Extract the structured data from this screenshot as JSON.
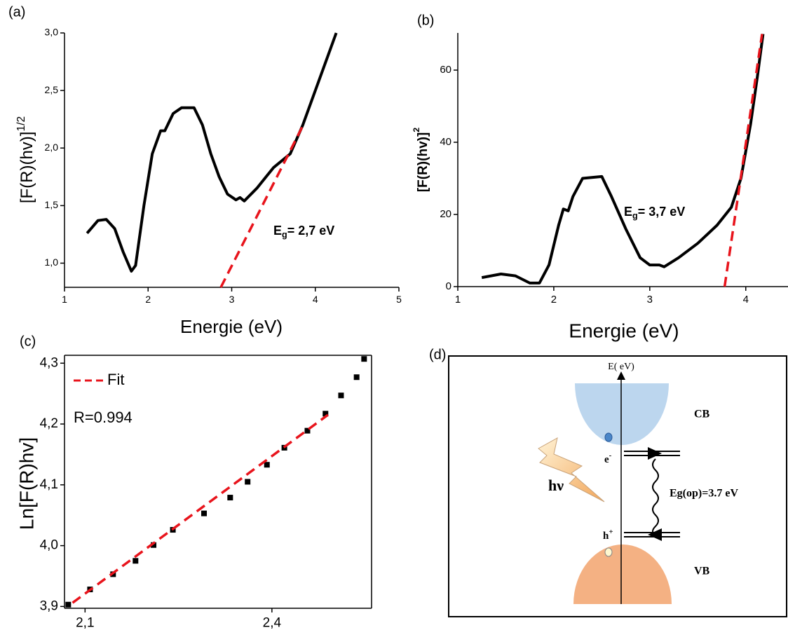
{
  "chart_data": [
    {
      "type": "line",
      "panel_label": "(a)",
      "xlabel": "Energie (eV)",
      "ylabel": {
        "text": "[F(R)(hv)]",
        "sup": "1/2"
      },
      "annotation": {
        "text": "E",
        "sub": "g",
        "rest": "= 2,7 eV"
      },
      "xlim": [
        1,
        5
      ],
      "xticks": [
        1,
        2,
        3,
        4,
        5
      ],
      "ylim": [
        0.79,
        3.0
      ],
      "yticks": [
        {
          "value": 1.0,
          "label": "1,0"
        },
        {
          "value": 1.5,
          "label": "1,5"
        },
        {
          "value": 2.0,
          "label": "2,0"
        },
        {
          "value": 2.5,
          "label": "2,5"
        },
        {
          "value": 3.0,
          "label": "3,0"
        }
      ],
      "series": [
        {
          "color": "#000000",
          "mark": "line",
          "x": [
            1.27,
            1.4,
            1.5,
            1.6,
            1.7,
            1.8,
            1.85,
            1.95,
            2.05,
            2.15,
            2.2,
            2.3,
            2.4,
            2.55,
            2.65,
            2.75,
            2.85,
            2.95,
            3.05,
            3.1,
            3.15,
            3.3,
            3.5,
            3.7,
            3.85,
            4.0,
            4.1,
            4.25
          ],
          "values": [
            1.26,
            1.37,
            1.38,
            1.3,
            1.1,
            0.93,
            0.98,
            1.5,
            1.95,
            2.15,
            2.15,
            2.3,
            2.35,
            2.35,
            2.2,
            1.95,
            1.75,
            1.6,
            1.55,
            1.57,
            1.54,
            1.65,
            1.83,
            1.95,
            2.2,
            2.5,
            2.7,
            3.0
          ]
        },
        {
          "color": "#e8141c",
          "mark": "line",
          "dash": true,
          "x": [
            2.87,
            3.87
          ],
          "values": [
            0.79,
            2.22
          ]
        }
      ]
    },
    {
      "type": "line",
      "panel_label": "(b)",
      "xlabel": "Energie (eV)",
      "ylabel": {
        "text": "[F(R)(hv)]",
        "sup": "2"
      },
      "annotation": {
        "text": "E",
        "sub": "g",
        "rest": "= 3,7 eV"
      },
      "xlim": [
        1,
        4.44
      ],
      "xticks": [
        1,
        2,
        3,
        4
      ],
      "ylim": [
        0,
        70.3
      ],
      "yticks": [
        0,
        20,
        40,
        60
      ],
      "series": [
        {
          "color": "#000000",
          "mark": "line",
          "x": [
            1.25,
            1.45,
            1.6,
            1.75,
            1.85,
            1.95,
            2.05,
            2.1,
            2.15,
            2.2,
            2.3,
            2.5,
            2.6,
            2.75,
            2.9,
            3.0,
            3.1,
            3.15,
            3.3,
            3.5,
            3.7,
            3.85,
            3.95,
            4.05,
            4.12,
            4.18
          ],
          "values": [
            2.5,
            3.5,
            3,
            1,
            1,
            6,
            17,
            21.5,
            21,
            25,
            30,
            30.5,
            25,
            16,
            8,
            6,
            6,
            5.5,
            8,
            12,
            17,
            22,
            30,
            45,
            58,
            70
          ]
        },
        {
          "color": "#e8141c",
          "mark": "line",
          "dash": true,
          "x": [
            3.78,
            4.17
          ],
          "values": [
            0,
            70
          ]
        }
      ]
    },
    {
      "type": "scatter",
      "panel_label": "(c)",
      "ylabel": "Ln[F(R)hv]",
      "annotation_text": "R=0.994",
      "legend": "upper left",
      "xlim": [
        2.067,
        2.56
      ],
      "xticks": [
        {
          "value": 2.1,
          "label": "2,1"
        },
        {
          "value": 2.4,
          "label": "2,4"
        }
      ],
      "ylim": [
        3.897,
        4.313
      ],
      "yticks": [
        {
          "value": 3.9,
          "label": "3,9"
        },
        {
          "value": 4.0,
          "label": "4,0"
        },
        {
          "value": 4.1,
          "label": "4,1"
        },
        {
          "value": 4.2,
          "label": "4,2"
        },
        {
          "value": 4.3,
          "label": "4,3"
        }
      ],
      "series": [
        {
          "color": "#000000",
          "mark": "point",
          "x": [
            2.073,
            2.108,
            2.145,
            2.181,
            2.21,
            2.241,
            2.291,
            2.333,
            2.361,
            2.392,
            2.42,
            2.457,
            2.486,
            2.511,
            2.536,
            2.548
          ],
          "values": [
            3.903,
            3.928,
            3.953,
            3.975,
            4.001,
            4.026,
            4.053,
            4.079,
            4.105,
            4.133,
            4.161,
            4.189,
            4.217,
            4.247,
            4.277,
            4.307
          ]
        },
        {
          "name": "Fit",
          "color": "#e8141c",
          "mark": "line",
          "dash": true,
          "x": [
            2.08,
            2.49
          ],
          "values": [
            3.906,
            4.215
          ]
        }
      ]
    }
  ],
  "diagram": {
    "panel_label": "(d)",
    "axis_label": "E( eV)",
    "conduction_band": "CB",
    "valence_band": "VB",
    "electron": {
      "text": "e",
      "sup": "-"
    },
    "hole": {
      "text": "h",
      "sup": "+"
    },
    "photon": "hν",
    "gap_label": "Eg(op)=3.7 eV"
  }
}
